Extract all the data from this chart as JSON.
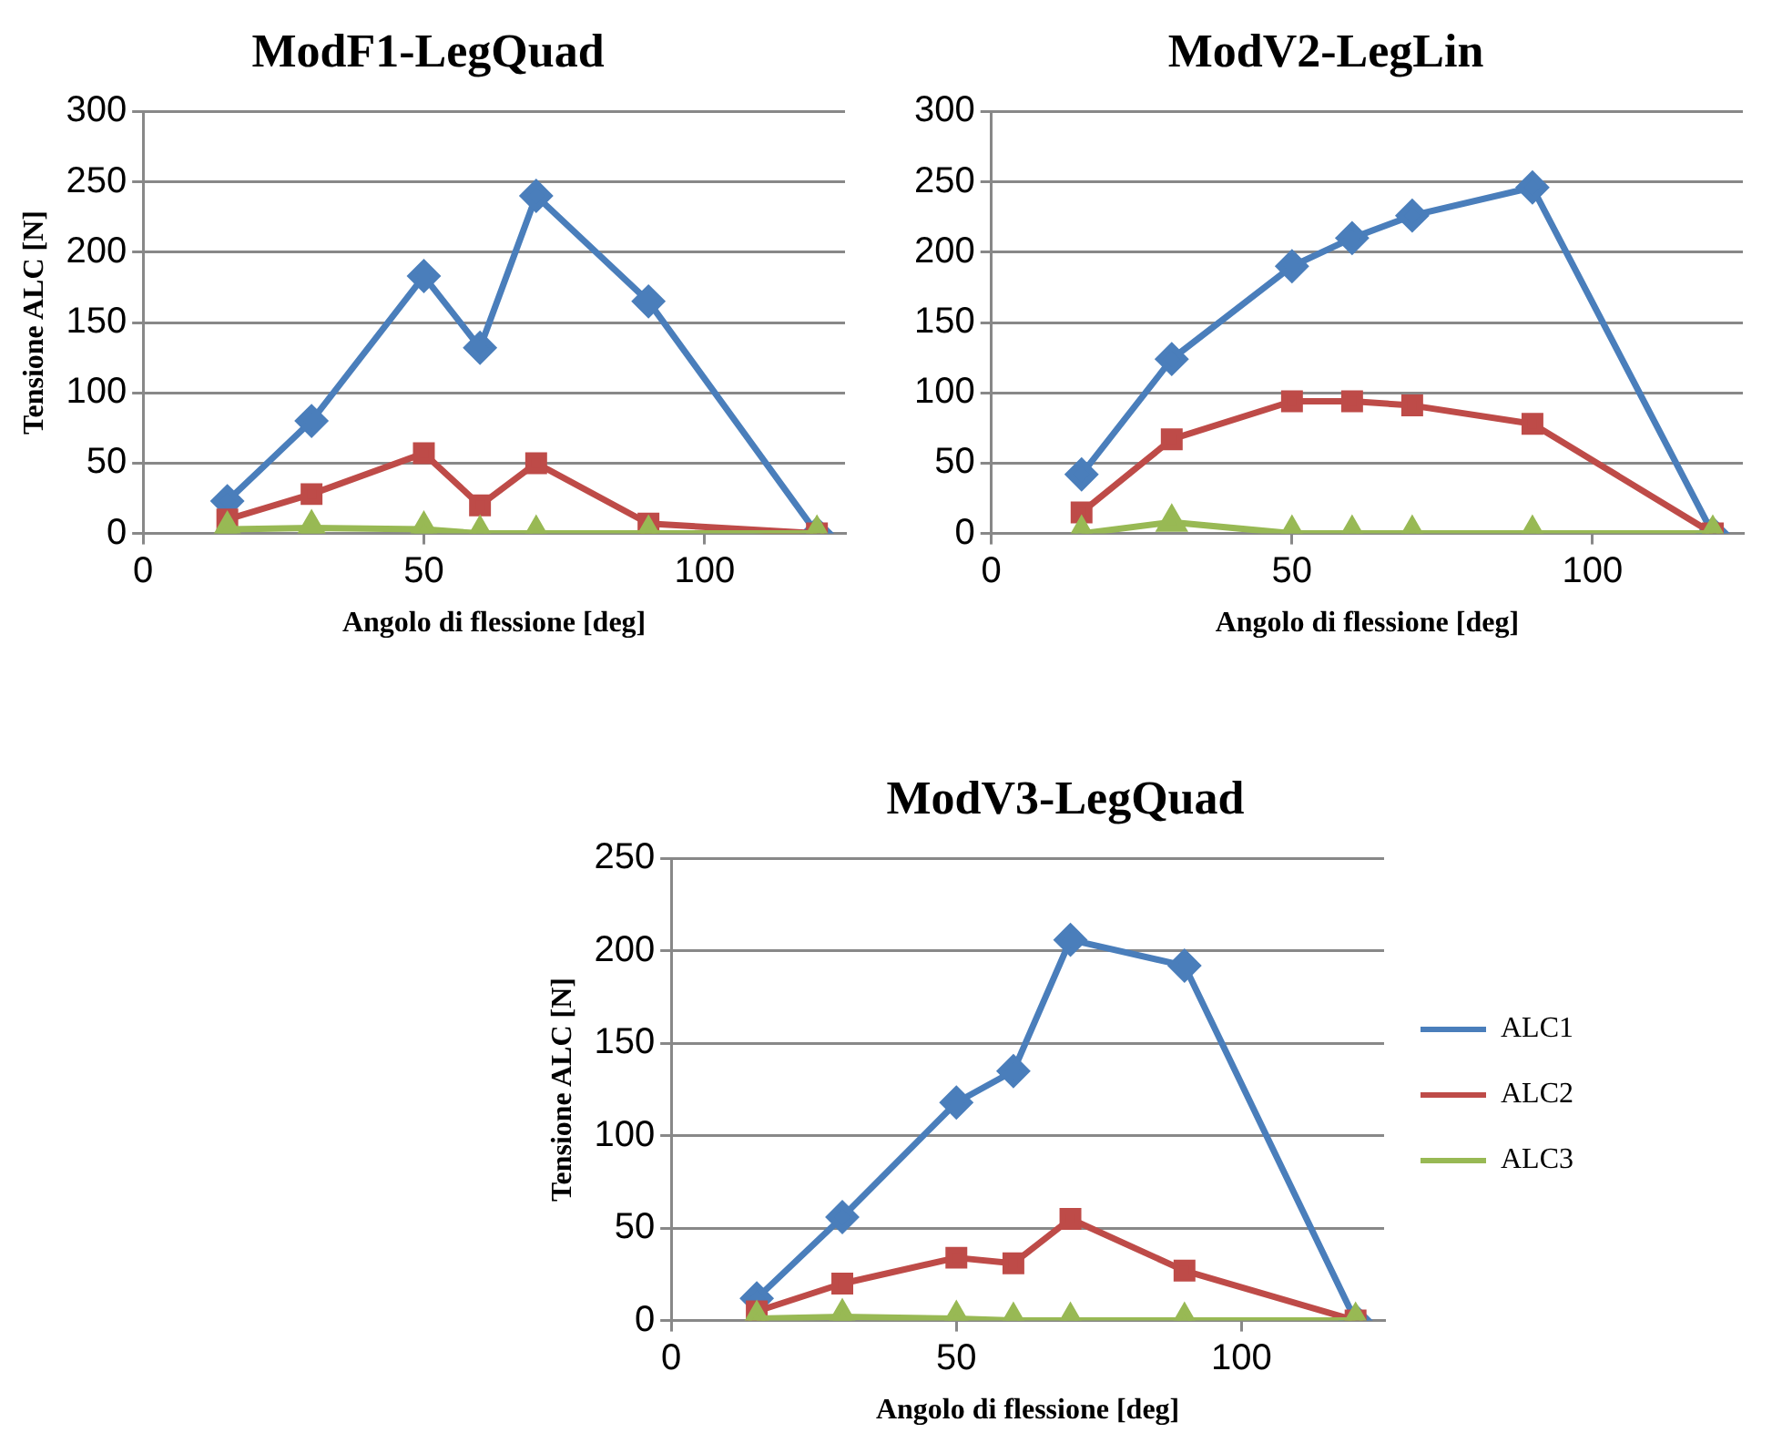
{
  "chart_data": [
    {
      "type": "line",
      "title": "ModF1-LegQuad",
      "xlabel": "Angolo di flessione [deg]",
      "ylabel": "Tensione ALC [N]",
      "x": [
        15,
        30,
        50,
        60,
        70,
        90,
        120
      ],
      "xlim": [
        0,
        125
      ],
      "xticks": [
        0,
        50,
        100
      ],
      "ylim": [
        0,
        300
      ],
      "yticks": [
        0,
        50,
        100,
        150,
        200,
        250,
        300
      ],
      "grid": "y",
      "legend": false,
      "series": [
        {
          "color": "#4a7ebb",
          "marker": "diamond",
          "values": [
            23,
            80,
            183,
            132,
            240,
            165,
            0
          ]
        },
        {
          "color": "#be4b48",
          "marker": "square",
          "values": [
            10,
            28,
            57,
            20,
            50,
            7,
            0
          ]
        },
        {
          "color": "#98b954",
          "marker": "triangle",
          "values": [
            3,
            4,
            3,
            0,
            0,
            0,
            0
          ]
        }
      ]
    },
    {
      "type": "line",
      "title": "ModV2-LegLin",
      "xlabel": "Angolo di flessione [deg]",
      "x": [
        15,
        30,
        50,
        60,
        70,
        90,
        120
      ],
      "xlim": [
        0,
        125
      ],
      "xticks": [
        0,
        50,
        100
      ],
      "ylim": [
        0,
        300
      ],
      "yticks": [
        0,
        50,
        100,
        150,
        200,
        250,
        300
      ],
      "grid": "y",
      "legend": false,
      "series": [
        {
          "color": "#4a7ebb",
          "marker": "diamond",
          "values": [
            42,
            124,
            190,
            210,
            226,
            246,
            0
          ]
        },
        {
          "color": "#be4b48",
          "marker": "square",
          "values": [
            15,
            67,
            94,
            94,
            91,
            78,
            0
          ]
        },
        {
          "color": "#98b954",
          "marker": "triangle",
          "values": [
            0,
            8,
            0,
            0,
            0,
            0,
            0
          ]
        }
      ]
    },
    {
      "type": "line",
      "title": "ModV3-LegQuad",
      "xlabel": "Angolo di flessione [deg]",
      "ylabel": "Tensione ALC [N]",
      "x": [
        15,
        30,
        50,
        60,
        70,
        90,
        120
      ],
      "xlim": [
        0,
        125
      ],
      "xticks": [
        0,
        50,
        100
      ],
      "ylim": [
        0,
        250
      ],
      "yticks": [
        0,
        50,
        100,
        150,
        200,
        250
      ],
      "grid": "y",
      "legend": "right",
      "series": [
        {
          "name": "ALC1",
          "color": "#4a7ebb",
          "marker": "diamond",
          "values": [
            12,
            56,
            118,
            135,
            206,
            192,
            0
          ]
        },
        {
          "name": "ALC2",
          "color": "#be4b48",
          "marker": "square",
          "values": [
            5,
            20,
            34,
            31,
            55,
            27,
            0
          ]
        },
        {
          "name": "ALC3",
          "color": "#98b954",
          "marker": "triangle",
          "values": [
            1,
            2,
            1,
            0,
            0,
            0,
            0
          ]
        }
      ]
    }
  ]
}
